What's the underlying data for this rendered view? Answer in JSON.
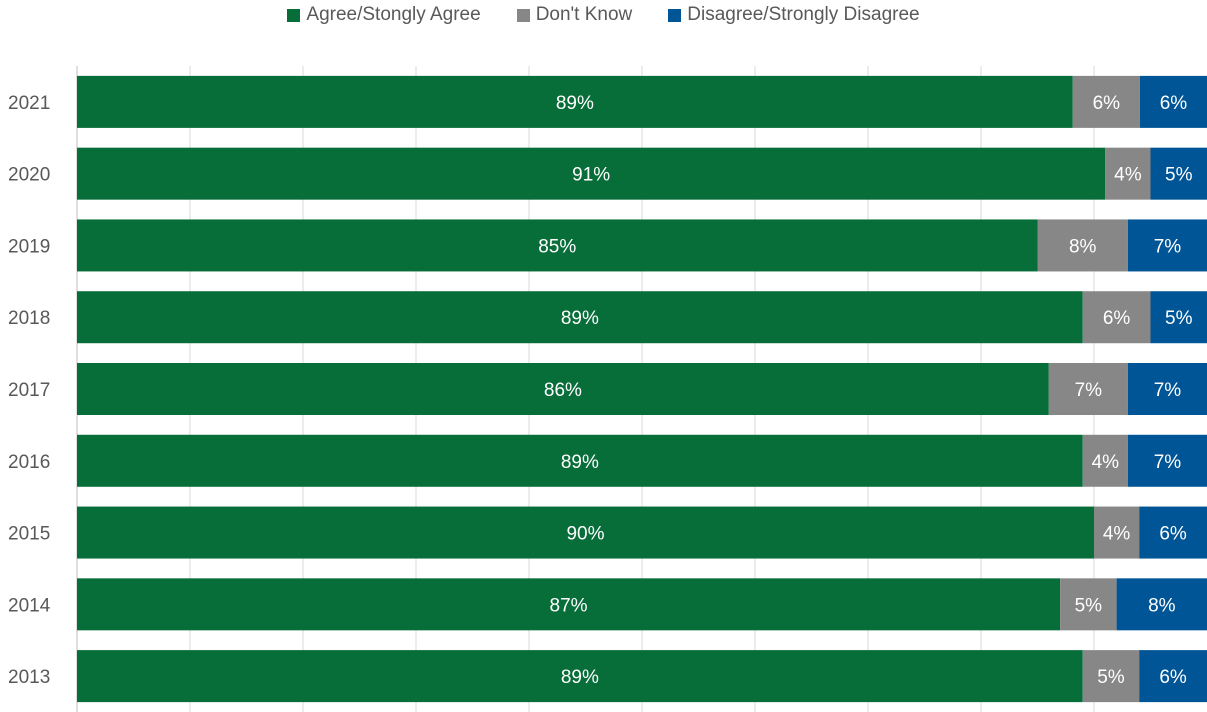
{
  "chart_data": {
    "type": "bar",
    "orientation": "horizontal",
    "stacked": "100%",
    "categories": [
      "2021",
      "2020",
      "2019",
      "2018",
      "2017",
      "2016",
      "2015",
      "2014",
      "2013"
    ],
    "series": [
      {
        "name": "Agree/Stongly Agree",
        "color": "#076d39",
        "values": [
          89,
          91,
          85,
          89,
          86,
          89,
          90,
          87,
          89
        ]
      },
      {
        "name": "Don't Know",
        "color": "#878787",
        "values": [
          6,
          4,
          8,
          6,
          7,
          4,
          4,
          5,
          5
        ]
      },
      {
        "name": "Disagree/Strongly Disagree",
        "color": "#005596",
        "values": [
          6,
          5,
          7,
          5,
          7,
          7,
          6,
          8,
          6
        ]
      }
    ],
    "data_labels": [
      [
        "89%",
        "91%",
        "85%",
        "89%",
        "86%",
        "89%",
        "90%",
        "87%",
        "89%"
      ],
      [
        "6%",
        "4%",
        "8%",
        "6%",
        "7%",
        "4%",
        "4%",
        "5%",
        "5%"
      ],
      [
        "6%",
        "5%",
        "7%",
        "5%",
        "7%",
        "7%",
        "6%",
        "8%",
        "6%"
      ]
    ],
    "xlim": [
      0,
      100
    ],
    "grid": true,
    "legend_position": "top"
  }
}
